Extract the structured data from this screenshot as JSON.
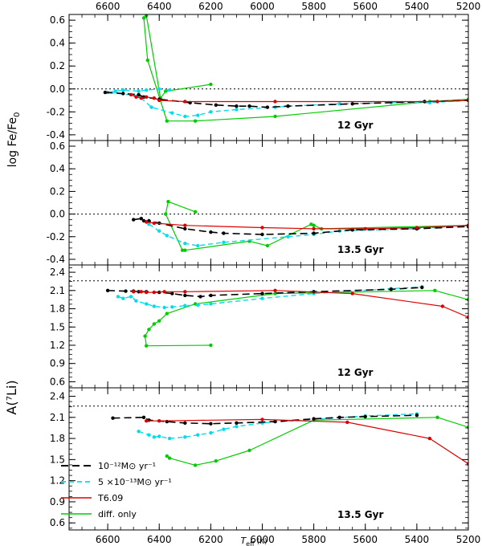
{
  "chart_data": {
    "type": "line",
    "x_axis": {
      "label_main": "T",
      "label_sub": "eff",
      "label_unit": "(K)",
      "range": [
        6750,
        5200
      ],
      "ticks": [
        6600,
        6400,
        6200,
        6000,
        5800,
        5600,
        5400,
        5200
      ],
      "tick_labels": [
        "6600",
        "6400",
        "6200",
        "6000",
        "5800",
        "5600",
        "5400",
        "5200"
      ]
    },
    "legend": [
      {
        "id": "ml12",
        "label": "10⁻¹²M⊙ yr⁻¹",
        "color": "#000000",
        "dash": "long"
      },
      {
        "id": "ml5",
        "label": "5 ×10⁻¹³M⊙ yr⁻¹",
        "color": "#00ddee",
        "dash": "short"
      },
      {
        "id": "t609",
        "label": "T6.09",
        "color": "#dd0000",
        "dash": "solid"
      },
      {
        "id": "diff",
        "label": "diff. only",
        "color": "#00cc00",
        "dash": "solid"
      }
    ],
    "groups": [
      {
        "ylabel_main": "log Fe/Fe",
        "ylabel_sub": "0",
        "panels": [
          0,
          1
        ]
      },
      {
        "ylabel_main": "A(⁷Li)",
        "ylabel_sub": "",
        "panels": [
          2,
          3
        ]
      }
    ],
    "panels": [
      {
        "label": "12 Gyr",
        "ylim": [
          -0.45,
          0.65
        ],
        "yticks": [
          0.6,
          0.4,
          0.2,
          0.0,
          -0.2,
          -0.4
        ],
        "ytick_labels": [
          "0.6",
          "0.4",
          "0.2",
          "0.0",
          "-0.2",
          "-0.4"
        ],
        "ref_line": 0.0,
        "series": [
          {
            "id": "diff",
            "x": [
              6200,
              6375,
              6395,
              6450,
              6460,
              6445,
              6370,
              6260,
              5950,
              5350,
              5200
            ],
            "y": [
              0.04,
              -0.02,
              -0.08,
              0.64,
              0.62,
              0.25,
              -0.28,
              -0.28,
              -0.24,
              -0.11,
              -0.09
            ]
          },
          {
            "id": "ml5",
            "x": [
              6360,
              6400,
              6450,
              6480,
              6540,
              6570,
              6600,
              6480,
              6430,
              6350,
              6300,
              6250,
              6200,
              6100,
              5950,
              5900,
              5700,
              5500,
              5350,
              5200
            ],
            "y": [
              -0.01,
              0.0,
              -0.01,
              -0.02,
              -0.01,
              -0.02,
              -0.03,
              -0.06,
              -0.16,
              -0.21,
              -0.24,
              -0.23,
              -0.2,
              -0.18,
              -0.16,
              -0.15,
              -0.13,
              -0.12,
              -0.12,
              -0.1
            ]
          },
          {
            "id": "ml12",
            "x": [
              6610,
              6540,
              6480,
              6460,
              6400,
              6280,
              6180,
              6100,
              6050,
              5980,
              5900,
              5650,
              5370,
              5200
            ],
            "y": [
              -0.03,
              -0.04,
              -0.05,
              -0.07,
              -0.09,
              -0.12,
              -0.14,
              -0.15,
              -0.15,
              -0.16,
              -0.15,
              -0.13,
              -0.11,
              -0.1
            ]
          },
          {
            "id": "t609",
            "x": [
              6510,
              6490,
              6470,
              6450,
              6420,
              6400,
              6300,
              5950,
              5320,
              5200
            ],
            "y": [
              -0.05,
              -0.07,
              -0.08,
              -0.07,
              -0.08,
              -0.1,
              -0.11,
              -0.11,
              -0.11,
              -0.1
            ]
          }
        ]
      },
      {
        "label": "13.5 Gyr",
        "ylim": [
          -0.45,
          0.65
        ],
        "yticks": [
          0.6,
          0.4,
          0.2,
          0.0,
          -0.2,
          -0.4
        ],
        "ytick_labels": [
          "0.6",
          "0.4",
          "0.2",
          "0.0",
          "-0.2",
          "-0.4"
        ],
        "ref_line": 0.0,
        "series": [
          {
            "id": "diff",
            "x": [
              6260,
              6365,
              6375,
              6310,
              6300,
              6050,
              5980,
              5810,
              5800,
              5770,
              5200
            ],
            "y": [
              0.02,
              0.11,
              0.0,
              -0.32,
              -0.32,
              -0.24,
              -0.28,
              -0.09,
              -0.1,
              -0.13,
              -0.1
            ]
          },
          {
            "id": "ml5",
            "x": [
              6440,
              6400,
              6370,
              6300,
              6250,
              6150,
              5900,
              5800,
              5700,
              5400,
              5200
            ],
            "y": [
              -0.09,
              -0.15,
              -0.19,
              -0.26,
              -0.28,
              -0.25,
              -0.2,
              -0.18,
              -0.15,
              -0.13,
              -0.1
            ]
          },
          {
            "id": "ml12",
            "x": [
              6500,
              6470,
              6460,
              6440,
              6400,
              6300,
              6200,
              6150,
              6000,
              5800,
              5650,
              5400,
              5200
            ],
            "y": [
              -0.05,
              -0.04,
              -0.06,
              -0.06,
              -0.08,
              -0.13,
              -0.16,
              -0.17,
              -0.18,
              -0.17,
              -0.14,
              -0.13,
              -0.11
            ]
          },
          {
            "id": "t609",
            "x": [
              6450,
              6420,
              6300,
              6000,
              5800,
              5600,
              5400,
              5200
            ],
            "y": [
              -0.07,
              -0.08,
              -0.1,
              -0.12,
              -0.13,
              -0.13,
              -0.12,
              -0.1
            ]
          }
        ]
      },
      {
        "label": "12 Gyr",
        "ylim": [
          0.5,
          2.52
        ],
        "yticks": [
          2.4,
          2.1,
          1.8,
          1.5,
          1.2,
          0.9,
          0.6
        ],
        "ytick_labels": [
          "2.4",
          "2.1",
          "1.8",
          "1.5",
          "1.2",
          "0.9",
          "0.6"
        ],
        "ref_line": 2.26,
        "series": [
          {
            "id": "diff",
            "x": [
              6200,
              6450,
              6455,
              6440,
              6420,
              6400,
              6370,
              6260,
              5950,
              5330,
              5200
            ],
            "y": [
              1.2,
              1.19,
              1.35,
              1.46,
              1.55,
              1.6,
              1.72,
              1.88,
              2.05,
              2.1,
              1.95
            ]
          },
          {
            "id": "ml5",
            "x": [
              6560,
              6540,
              6510,
              6490,
              6450,
              6420,
              6380,
              6350,
              6300,
              6250,
              6200,
              6000,
              5800,
              5500,
              5380
            ],
            "y": [
              2.0,
              1.97,
              2.0,
              1.93,
              1.88,
              1.84,
              1.82,
              1.83,
              1.85,
              1.86,
              1.88,
              1.97,
              2.05,
              2.13,
              2.16
            ]
          },
          {
            "id": "ml12",
            "x": [
              6600,
              6530,
              6500,
              6480,
              6450,
              6400,
              6350,
              6300,
              6240,
              6200,
              6000,
              5800,
              5500,
              5380
            ],
            "y": [
              2.1,
              2.09,
              2.09,
              2.08,
              2.08,
              2.07,
              2.05,
              2.02,
              2.0,
              2.02,
              2.05,
              2.08,
              2.12,
              2.15
            ]
          },
          {
            "id": "t609",
            "x": [
              6500,
              6470,
              6450,
              6420,
              6380,
              6300,
              5950,
              5650,
              5300,
              5200
            ],
            "y": [
              2.08,
              2.08,
              2.07,
              2.07,
              2.08,
              2.08,
              2.1,
              2.05,
              1.84,
              1.66
            ]
          }
        ]
      },
      {
        "label": "13.5 Gyr",
        "ylim": [
          0.5,
          2.52
        ],
        "yticks": [
          2.4,
          2.1,
          1.8,
          1.5,
          1.2,
          0.9,
          0.6
        ],
        "ytick_labels": [
          "2.4",
          "2.1",
          "1.8",
          "1.5",
          "1.2",
          "0.9",
          "0.6"
        ],
        "ref_line": 2.26,
        "series": [
          {
            "id": "diff",
            "x": [
              6370,
              6360,
              6260,
              6180,
              6050,
              5800,
              5320,
              5200
            ],
            "y": [
              1.55,
              1.52,
              1.42,
              1.48,
              1.63,
              2.06,
              2.1,
              1.96
            ]
          },
          {
            "id": "ml5",
            "x": [
              6480,
              6440,
              6420,
              6400,
              6360,
              6300,
              6250,
              6200,
              6150,
              6100,
              6000,
              5800,
              5600,
              5400
            ],
            "y": [
              1.9,
              1.85,
              1.82,
              1.83,
              1.8,
              1.82,
              1.85,
              1.88,
              1.93,
              1.97,
              2.02,
              2.07,
              2.12,
              2.15
            ]
          },
          {
            "id": "ml12",
            "x": [
              6580,
              6460,
              6440,
              6370,
              6300,
              6200,
              6100,
              5950,
              5800,
              5700,
              5600,
              5400
            ],
            "y": [
              2.09,
              2.1,
              2.06,
              2.04,
              2.02,
              2.01,
              2.02,
              2.04,
              2.08,
              2.1,
              2.11,
              2.13
            ]
          },
          {
            "id": "t609",
            "x": [
              6450,
              6400,
              6000,
              5670,
              5350,
              5200
            ],
            "y": [
              2.05,
              2.05,
              2.07,
              2.03,
              1.8,
              1.44
            ]
          }
        ]
      }
    ]
  }
}
